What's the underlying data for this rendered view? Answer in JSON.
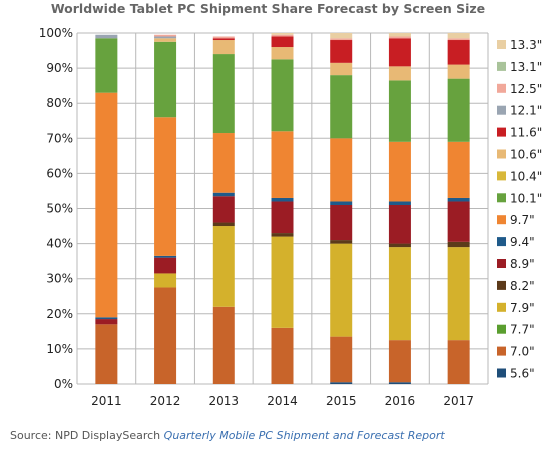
{
  "chart_data": {
    "type": "bar",
    "stacked": true,
    "title": "Worldwide Tablet PC Shipment Share Forecast by Screen Size",
    "xlabel": "",
    "ylabel": "",
    "ylim": [
      0,
      100
    ],
    "y_ticks": [
      "0%",
      "10%",
      "20%",
      "30%",
      "40%",
      "50%",
      "60%",
      "70%",
      "80%",
      "90%",
      "100%"
    ],
    "categories": [
      "2011",
      "2012",
      "2013",
      "2014",
      "2015",
      "2016",
      "2017"
    ],
    "grid": true,
    "legend_position": "right",
    "series": [
      {
        "name": "5.6\"",
        "color": "#1f4e79",
        "values": [
          0,
          0,
          0,
          0,
          0.5,
          0.5,
          0
        ]
      },
      {
        "name": "7.0\"",
        "color": "#c8642a",
        "values": [
          17,
          27.5,
          22,
          16,
          13,
          12,
          12.5
        ]
      },
      {
        "name": "7.7\"",
        "color": "#5a9e2f",
        "values": [
          0,
          0,
          0,
          0,
          0,
          0,
          0
        ]
      },
      {
        "name": "7.9\"",
        "color": "#d4b12c",
        "values": [
          0,
          4,
          23,
          26,
          26.5,
          26.5,
          26.5
        ]
      },
      {
        "name": "8.2\"",
        "color": "#5c3a1a",
        "values": [
          0,
          0,
          1,
          1,
          1,
          1,
          1.5
        ]
      },
      {
        "name": "8.9\"",
        "color": "#9b1c24",
        "values": [
          1.5,
          4.5,
          7.5,
          9,
          10,
          11,
          11.5
        ]
      },
      {
        "name": "9.4\"",
        "color": "#1f5a8a",
        "values": [
          0.5,
          0.5,
          1,
          1,
          1,
          1,
          1
        ]
      },
      {
        "name": "9.7\"",
        "color": "#ef8532",
        "values": [
          64,
          39.5,
          17,
          19,
          18,
          17,
          16
        ]
      },
      {
        "name": "10.1\"",
        "color": "#67a23e",
        "values": [
          15.5,
          21.5,
          22.5,
          20.5,
          18,
          17.5,
          18
        ]
      },
      {
        "name": "10.4\"",
        "color": "#d8b83a",
        "values": [
          0,
          0,
          0,
          0,
          0,
          0,
          0
        ]
      },
      {
        "name": "10.6\"",
        "color": "#e8b975",
        "values": [
          0,
          1,
          4,
          3.5,
          3.5,
          4,
          4
        ]
      },
      {
        "name": "11.6\"",
        "color": "#c81e23",
        "values": [
          0,
          0,
          0.5,
          3,
          6.5,
          8,
          7
        ]
      },
      {
        "name": "12.1\"",
        "color": "#9aa5b2",
        "values": [
          1,
          0.5,
          0,
          0,
          0,
          0,
          0
        ]
      },
      {
        "name": "12.5\"",
        "color": "#f1a89a",
        "values": [
          0,
          0.5,
          0.5,
          0.5,
          0.5,
          0.5,
          0.5
        ]
      },
      {
        "name": "13.1\"",
        "color": "#a9c39a",
        "values": [
          0,
          0,
          0,
          0,
          0,
          0,
          0
        ]
      },
      {
        "name": "13.3\"",
        "color": "#e9cfa3",
        "values": [
          0,
          0,
          0,
          0.5,
          1.5,
          1,
          1.5
        ]
      }
    ]
  },
  "source": {
    "prefix": "Source: NPD DisplaySearch ",
    "report": "Quarterly Mobile PC Shipment and Forecast Report"
  },
  "colors": {
    "grid": "#b8b8b8",
    "axis": "#888888",
    "title": "#666666"
  }
}
